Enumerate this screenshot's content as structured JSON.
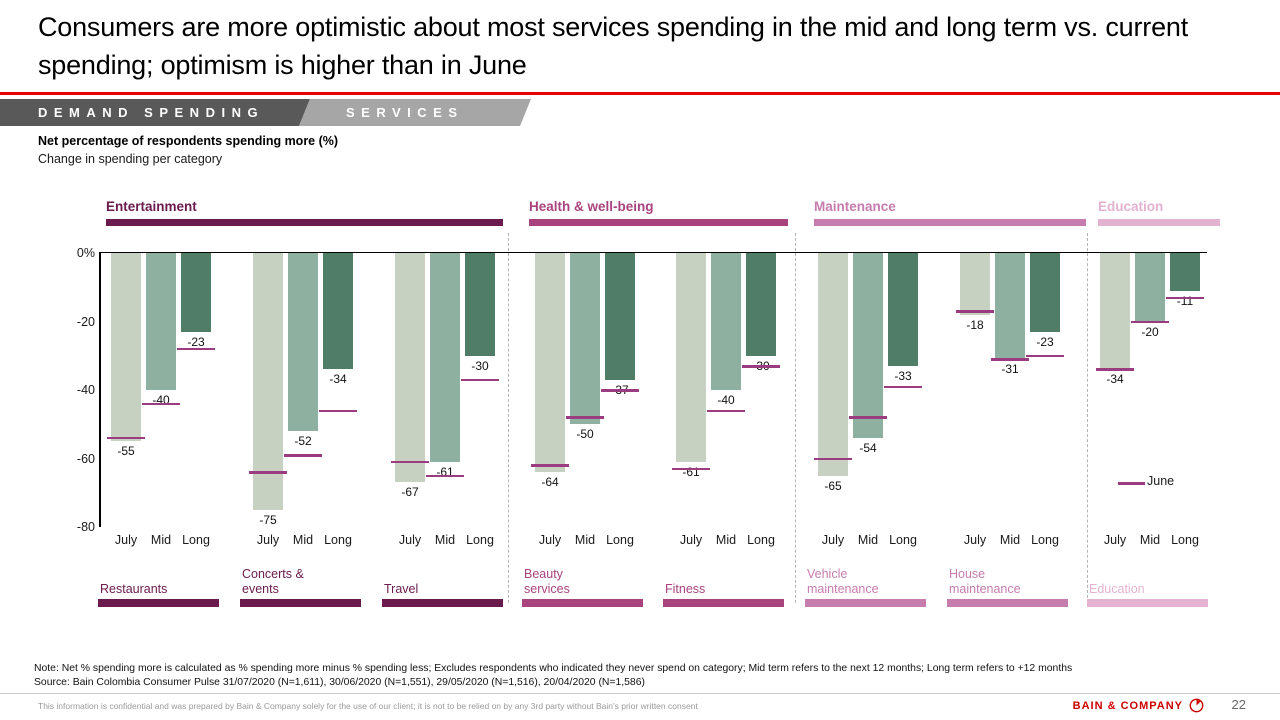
{
  "slide": {
    "title": "Consumers are more optimistic about most services spending in the mid and long term vs. current spending; optimism is higher than in June",
    "tabs": [
      {
        "label": "DEMAND SPENDING"
      },
      {
        "label": "SERVICES"
      }
    ],
    "note": "Note: Net % spending more is calculated as % spending more minus % spending less; Excludes respondents who indicated they never spend on category; Mid term refers to the next 12 months; Long term refers to +12 months",
    "source": "Source: Bain Colombia Consumer Pulse 31/07/2020 (N=1,611), 30/06/2020 (N=1,551), 29/05/2020 (N=1,516), 20/04/2020 (N=1,586)",
    "footer": {
      "disclaimer": "This information is confidential and was prepared by Bain & Company solely for the use of our client; it is not to be relied on by any 3rd party without Bain's prior written consent",
      "brand": "BAIN & COMPANY",
      "page": "22"
    }
  },
  "chart_data": {
    "type": "bar",
    "title": "Net percentage of respondents spending more (%)",
    "subtitle": "Change in spending per category",
    "x_labels": [
      "July",
      "Mid",
      "Long"
    ],
    "y_ticks": [
      {
        "value": 0,
        "label": "0%"
      },
      {
        "value": -20,
        "label": "-20"
      },
      {
        "value": -40,
        "label": "-40"
      },
      {
        "value": -60,
        "label": "-60"
      },
      {
        "value": -80,
        "label": "-80"
      }
    ],
    "ylim": [
      -80,
      0
    ],
    "grid": false,
    "bar_colors": [
      "#c7d1c2",
      "#8db0a0",
      "#4f7d68"
    ],
    "june_color": "#9b3c80",
    "legend": {
      "label": "June",
      "position": "right-middle"
    },
    "sections": [
      {
        "name": "Entertainment",
        "color": "#6a1a4c",
        "groups": [
          {
            "label": "Restaurants",
            "values": [
              -55,
              -40,
              -23
            ],
            "june": [
              -54,
              -44,
              -28
            ]
          },
          {
            "label": "Concerts &\nevents",
            "values": [
              -75,
              -52,
              -34
            ],
            "june": [
              -64,
              -59,
              -46
            ]
          },
          {
            "label": "Travel",
            "values": [
              -67,
              -61,
              -30
            ],
            "june": [
              -61,
              -65,
              -37
            ]
          }
        ]
      },
      {
        "name": "Health & well-being",
        "color": "#a8437e",
        "groups": [
          {
            "label": "Beauty\nservices",
            "values": [
              -64,
              -50,
              -37
            ],
            "june": [
              -62,
              -48,
              -40
            ]
          },
          {
            "label": "Fitness",
            "values": [
              -61,
              -40,
              -30
            ],
            "june": [
              -63,
              -46,
              -33
            ]
          }
        ]
      },
      {
        "name": "Maintenance",
        "color": "#c77cae",
        "groups": [
          {
            "label": "Vehicle\nmaintenance",
            "values": [
              -65,
              -54,
              -33
            ],
            "june": [
              -60,
              -48,
              -39
            ]
          },
          {
            "label": "House\nmaintenance",
            "values": [
              -18,
              -31,
              -23
            ],
            "june": [
              -17,
              -31,
              -30
            ]
          }
        ]
      },
      {
        "name": "Education",
        "color": "#e3b2d1",
        "groups": [
          {
            "label": "Education",
            "values": [
              -34,
              -20,
              -11
            ],
            "june": [
              -34,
              -20,
              -13
            ]
          }
        ]
      }
    ]
  }
}
